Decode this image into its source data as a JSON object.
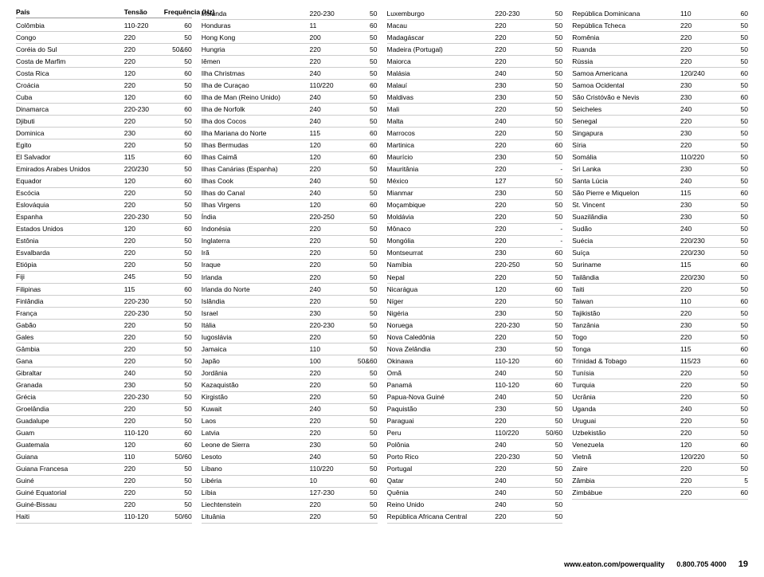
{
  "headers": {
    "country": "País",
    "voltage": "Tensão",
    "freq": "Frequência (Hz)"
  },
  "footer": {
    "url": "www.eaton.com/powerquality",
    "phone": "0.800.705 4000",
    "page": "19"
  },
  "cols": [
    [
      {
        "n": "Colômbia",
        "v": "110-220",
        "f": "60"
      },
      {
        "n": "Congo",
        "v": "220",
        "f": "50"
      },
      {
        "n": "Coréia do Sul",
        "v": "220",
        "f": "50&60"
      },
      {
        "n": "Costa de Marfim",
        "v": "220",
        "f": "50"
      },
      {
        "n": "Costa Rica",
        "v": "120",
        "f": "60"
      },
      {
        "n": "Croácia",
        "v": "220",
        "f": "50"
      },
      {
        "n": "Cuba",
        "v": "120",
        "f": "60"
      },
      {
        "n": "Dinamarca",
        "v": "220-230",
        "f": "60"
      },
      {
        "n": "Djibuti",
        "v": "220",
        "f": "50"
      },
      {
        "n": "Dominica",
        "v": "230",
        "f": "60"
      },
      {
        "n": "Egito",
        "v": "220",
        "f": "50"
      },
      {
        "n": "El Salvador",
        "v": "115",
        "f": "60"
      },
      {
        "n": "Emirados Arabes Unidos",
        "v": "220/230",
        "f": "50"
      },
      {
        "n": "Equador",
        "v": "120",
        "f": "60"
      },
      {
        "n": "Escócia",
        "v": "220",
        "f": "50"
      },
      {
        "n": "Eslováquia",
        "v": "220",
        "f": "50"
      },
      {
        "n": "Espanha",
        "v": "220-230",
        "f": "50"
      },
      {
        "n": "Estados Unidos",
        "v": "120",
        "f": "60"
      },
      {
        "n": "Estônia",
        "v": "220",
        "f": "50"
      },
      {
        "n": "Esvalbarda",
        "v": "220",
        "f": "50"
      },
      {
        "n": "Etiópia",
        "v": "220",
        "f": "50"
      },
      {
        "n": "Fiji",
        "v": "245",
        "f": "50"
      },
      {
        "n": "Filipinas",
        "v": "115",
        "f": "60"
      },
      {
        "n": "Finlândia",
        "v": "220-230",
        "f": "50"
      },
      {
        "n": "França",
        "v": "220-230",
        "f": "50"
      },
      {
        "n": "Gabão",
        "v": "220",
        "f": "50"
      },
      {
        "n": "Gales",
        "v": "220",
        "f": "50"
      },
      {
        "n": "Gâmbia",
        "v": "220",
        "f": "50"
      },
      {
        "n": "Gana",
        "v": "220",
        "f": "50"
      },
      {
        "n": "Gibraltar",
        "v": "240",
        "f": "50"
      },
      {
        "n": "Granada",
        "v": "230",
        "f": "50"
      },
      {
        "n": "Grécia",
        "v": "220-230",
        "f": "50"
      },
      {
        "n": "Groelândia",
        "v": "220",
        "f": "50"
      },
      {
        "n": "Guadalupe",
        "v": "220",
        "f": "50"
      },
      {
        "n": "Guam",
        "v": "110-120",
        "f": "60"
      },
      {
        "n": "Guatemala",
        "v": "120",
        "f": "60"
      },
      {
        "n": "Guiana",
        "v": "110",
        "f": "50/60"
      },
      {
        "n": "Guiana Francesa",
        "v": "220",
        "f": "50"
      },
      {
        "n": "Guiné",
        "v": "220",
        "f": "50"
      },
      {
        "n": "Guiné Equatorial",
        "v": "220",
        "f": "50"
      },
      {
        "n": "Guiné-Bissau",
        "v": "220",
        "f": "50"
      },
      {
        "n": "Haiti",
        "v": "110-120",
        "f": "50/60"
      }
    ],
    [
      {
        "n": "Holanda",
        "v": "220-230",
        "f": "50"
      },
      {
        "n": "Honduras",
        "v": "11",
        "f": "60"
      },
      {
        "n": "Hong Kong",
        "v": "200",
        "f": "50"
      },
      {
        "n": "Hungria",
        "v": "220",
        "f": "50"
      },
      {
        "n": "Iêmen",
        "v": "220",
        "f": "50"
      },
      {
        "n": "Ilha Christmas",
        "v": "240",
        "f": "50"
      },
      {
        "n": "Ilha de Curaçao",
        "v": "110/220",
        "f": "60"
      },
      {
        "n": "Ilha de Man (Reino Unido)",
        "v": "240",
        "f": "50"
      },
      {
        "n": "Ilha de Norfolk",
        "v": "240",
        "f": "50"
      },
      {
        "n": "Ilha dos Cocos",
        "v": "240",
        "f": "50"
      },
      {
        "n": "Ilha Mariana do Norte",
        "v": "115",
        "f": "60"
      },
      {
        "n": "Ilhas Bermudas",
        "v": "120",
        "f": "60"
      },
      {
        "n": "Ilhas Caimã",
        "v": "120",
        "f": "60"
      },
      {
        "n": "Ilhas Canárias (Espanha)",
        "v": "220",
        "f": "50"
      },
      {
        "n": "Ilhas Cook",
        "v": "240",
        "f": "50"
      },
      {
        "n": "Ilhas do Canal",
        "v": "240",
        "f": "50"
      },
      {
        "n": "Ilhas Virgens",
        "v": "120",
        "f": "60"
      },
      {
        "n": "Índia",
        "v": "220-250",
        "f": "50"
      },
      {
        "n": "Indonésia",
        "v": "220",
        "f": "50"
      },
      {
        "n": "Inglaterra",
        "v": "220",
        "f": "50"
      },
      {
        "n": "Irã",
        "v": "220",
        "f": "50"
      },
      {
        "n": "Iraque",
        "v": "220",
        "f": "50"
      },
      {
        "n": "Irlanda",
        "v": "220",
        "f": "50"
      },
      {
        "n": "Irlanda do Norte",
        "v": "240",
        "f": "50"
      },
      {
        "n": "Islândia",
        "v": "220",
        "f": "50"
      },
      {
        "n": "Israel",
        "v": "230",
        "f": "50"
      },
      {
        "n": "Itália",
        "v": "220-230",
        "f": "50"
      },
      {
        "n": "Iugoslávia",
        "v": "220",
        "f": "50"
      },
      {
        "n": "Jamaica",
        "v": "110",
        "f": "50"
      },
      {
        "n": "Japão",
        "v": "100",
        "f": "50&60"
      },
      {
        "n": "Jordânia",
        "v": "220",
        "f": "50"
      },
      {
        "n": "Kazaquistão",
        "v": "220",
        "f": "50"
      },
      {
        "n": "Kirgistão",
        "v": "220",
        "f": "50"
      },
      {
        "n": "Kuwait",
        "v": "240",
        "f": "50"
      },
      {
        "n": "Laos",
        "v": "220",
        "f": "50"
      },
      {
        "n": "Latvia",
        "v": "220",
        "f": "50"
      },
      {
        "n": "Leone de Sierra",
        "v": "230",
        "f": "50"
      },
      {
        "n": "Lesoto",
        "v": "240",
        "f": "50"
      },
      {
        "n": "Líbano",
        "v": "110/220",
        "f": "50"
      },
      {
        "n": "Libéria",
        "v": "10",
        "f": "60"
      },
      {
        "n": "Líbia",
        "v": "127-230",
        "f": "50"
      },
      {
        "n": "Liechtenstein",
        "v": "220",
        "f": "50"
      },
      {
        "n": "Lituânia",
        "v": "220",
        "f": "50"
      }
    ],
    [
      {
        "n": "Luxemburgo",
        "v": "220-230",
        "f": "50"
      },
      {
        "n": "Macau",
        "v": "220",
        "f": "50"
      },
      {
        "n": "Madagáscar",
        "v": "220",
        "f": "50"
      },
      {
        "n": "Madeira (Portugal)",
        "v": "220",
        "f": "50"
      },
      {
        "n": "Maiorca",
        "v": "220",
        "f": "50"
      },
      {
        "n": "Malásia",
        "v": "240",
        "f": "50"
      },
      {
        "n": "Malauí",
        "v": "230",
        "f": "50"
      },
      {
        "n": "Maldivas",
        "v": "230",
        "f": "50"
      },
      {
        "n": "Mali",
        "v": "220",
        "f": "50"
      },
      {
        "n": "Malta",
        "v": "240",
        "f": "50"
      },
      {
        "n": "Marrocos",
        "v": "220",
        "f": "50"
      },
      {
        "n": "Martinica",
        "v": "220",
        "f": "60"
      },
      {
        "n": "Maurício",
        "v": "230",
        "f": "50"
      },
      {
        "n": "Mauritânia",
        "v": "220",
        "f": "-"
      },
      {
        "n": "México",
        "v": "127",
        "f": "50"
      },
      {
        "n": "Mianmar",
        "v": "230",
        "f": "50"
      },
      {
        "n": "Moçambique",
        "v": "220",
        "f": "50"
      },
      {
        "n": "Moldávia",
        "v": "220",
        "f": "50"
      },
      {
        "n": "Mônaco",
        "v": "220",
        "f": "-"
      },
      {
        "n": "Mongólia",
        "v": "220",
        "f": "-"
      },
      {
        "n": "Montseurrat",
        "v": "230",
        "f": "60"
      },
      {
        "n": "Namíbia",
        "v": "220-250",
        "f": "50"
      },
      {
        "n": "Nepal",
        "v": "220",
        "f": "50"
      },
      {
        "n": "Nicarágua",
        "v": "120",
        "f": "60"
      },
      {
        "n": "Níger",
        "v": "220",
        "f": "50"
      },
      {
        "n": "Nigéria",
        "v": "230",
        "f": "50"
      },
      {
        "n": "Noruega",
        "v": "220-230",
        "f": "50"
      },
      {
        "n": "Nova Caledônia",
        "v": "220",
        "f": "50"
      },
      {
        "n": "Nova Zelândia",
        "v": "230",
        "f": "50"
      },
      {
        "n": "Okinawa",
        "v": "110-120",
        "f": "60"
      },
      {
        "n": "Omã",
        "v": "240",
        "f": "50"
      },
      {
        "n": "Panamá",
        "v": "110-120",
        "f": "60"
      },
      {
        "n": "Papua-Nova Guiné",
        "v": "240",
        "f": "50"
      },
      {
        "n": "Paquistão",
        "v": "230",
        "f": "50"
      },
      {
        "n": "Paraguai",
        "v": "220",
        "f": "50"
      },
      {
        "n": "Peru",
        "v": "110/220",
        "f": "50/60"
      },
      {
        "n": "Polônia",
        "v": "240",
        "f": "50"
      },
      {
        "n": "Porto Rico",
        "v": "220-230",
        "f": "50"
      },
      {
        "n": "Portugal",
        "v": "220",
        "f": "50"
      },
      {
        "n": "Qatar",
        "v": "240",
        "f": "50"
      },
      {
        "n": "Quênia",
        "v": "240",
        "f": "50"
      },
      {
        "n": "Reino Unido",
        "v": "240",
        "f": "50"
      },
      {
        "n": "República Africana Central",
        "v": "220",
        "f": "50"
      }
    ],
    [
      {
        "n": "República Dominicana",
        "v": "110",
        "f": "60"
      },
      {
        "n": "República Tcheca",
        "v": "220",
        "f": "50"
      },
      {
        "n": "Romênia",
        "v": "220",
        "f": "50"
      },
      {
        "n": "Ruanda",
        "v": "220",
        "f": "50"
      },
      {
        "n": "Rússia",
        "v": "220",
        "f": "50"
      },
      {
        "n": "Samoa Americana",
        "v": "120/240",
        "f": "60"
      },
      {
        "n": "Samoa Ocidental",
        "v": "230",
        "f": "50"
      },
      {
        "n": "São Cristóvão e Nevis",
        "v": "230",
        "f": "60"
      },
      {
        "n": "Seicheles",
        "v": "240",
        "f": "50"
      },
      {
        "n": "Senegal",
        "v": "220",
        "f": "50"
      },
      {
        "n": "Singapura",
        "v": "230",
        "f": "50"
      },
      {
        "n": "Síria",
        "v": "220",
        "f": "50"
      },
      {
        "n": "Somália",
        "v": "110/220",
        "f": "50"
      },
      {
        "n": "Sri Lanka",
        "v": "230",
        "f": "50"
      },
      {
        "n": "Santa Lúcia",
        "v": "240",
        "f": "50"
      },
      {
        "n": "São Pierre e Miquelon",
        "v": "115",
        "f": "60"
      },
      {
        "n": "St. Vincent",
        "v": "230",
        "f": "50"
      },
      {
        "n": "Suazilândia",
        "v": "230",
        "f": "50"
      },
      {
        "n": "Sudão",
        "v": "240",
        "f": "50"
      },
      {
        "n": "Suécia",
        "v": "220/230",
        "f": "50"
      },
      {
        "n": "Suíça",
        "v": "220/230",
        "f": "50"
      },
      {
        "n": "Suriname",
        "v": "115",
        "f": "60"
      },
      {
        "n": "Tailândia",
        "v": "220/230",
        "f": "50"
      },
      {
        "n": "Taiti",
        "v": "220",
        "f": "50"
      },
      {
        "n": "Taiwan",
        "v": "110",
        "f": "60"
      },
      {
        "n": "Tajikistão",
        "v": "220",
        "f": "50"
      },
      {
        "n": "Tanzânia",
        "v": "230",
        "f": "50"
      },
      {
        "n": "Togo",
        "v": "220",
        "f": "50"
      },
      {
        "n": "Tonga",
        "v": "115",
        "f": "60"
      },
      {
        "n": "Trinidad & Tobago",
        "v": "115/23",
        "f": "60"
      },
      {
        "n": "Tunísia",
        "v": "220",
        "f": "50"
      },
      {
        "n": "Turquia",
        "v": "220",
        "f": "50"
      },
      {
        "n": "Ucrânia",
        "v": "220",
        "f": "50"
      },
      {
        "n": "Uganda",
        "v": "240",
        "f": "50"
      },
      {
        "n": "Uruguai",
        "v": "220",
        "f": "50"
      },
      {
        "n": "Uzbekistão",
        "v": "220",
        "f": "50"
      },
      {
        "n": "Venezuela",
        "v": "120",
        "f": "60"
      },
      {
        "n": "Vietnã",
        "v": "120/220",
        "f": "50"
      },
      {
        "n": "Zaire",
        "v": "220",
        "f": "50"
      },
      {
        "n": "Zâmbia",
        "v": "220",
        "f": "5"
      },
      {
        "n": "Zimbábue",
        "v": "220",
        "f": "60"
      }
    ]
  ]
}
